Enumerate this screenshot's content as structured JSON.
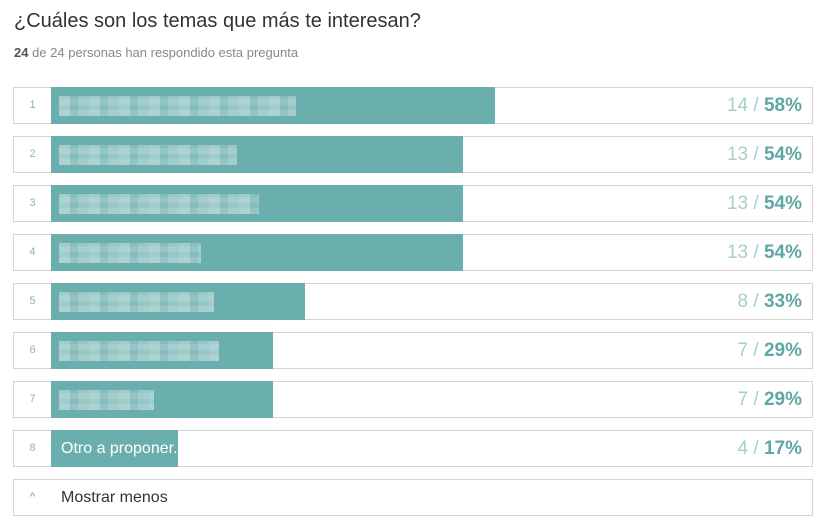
{
  "question": {
    "title": "¿Cuáles son los temas que más te interesan?",
    "respondents": "24",
    "respondents_rest": " de 24 personas han respondido esta pregunta"
  },
  "colors": {
    "bar": "#6aafad",
    "count_text": "#a6cfcb",
    "percent_text": "#5ea7a3"
  },
  "chart_data": {
    "type": "bar",
    "orientation": "horizontal",
    "total": 24,
    "categories": [
      "1",
      "2",
      "3",
      "4",
      "5",
      "6",
      "7",
      "8"
    ],
    "labels": [
      "",
      "",
      "",
      "",
      "",
      "",
      "",
      "Otro a proponer..."
    ],
    "label_redacted": [
      true,
      true,
      true,
      true,
      true,
      true,
      true,
      false
    ],
    "values": [
      14,
      13,
      13,
      13,
      8,
      7,
      7,
      4
    ],
    "percents": [
      "58%",
      "54%",
      "54%",
      "54%",
      "33%",
      "29%",
      "29%",
      "17%"
    ],
    "xlim": [
      0,
      24
    ]
  },
  "footer": {
    "caret_icon": "caret-up-icon",
    "caret_glyph": "^",
    "toggle_label": "Mostrar menos"
  }
}
